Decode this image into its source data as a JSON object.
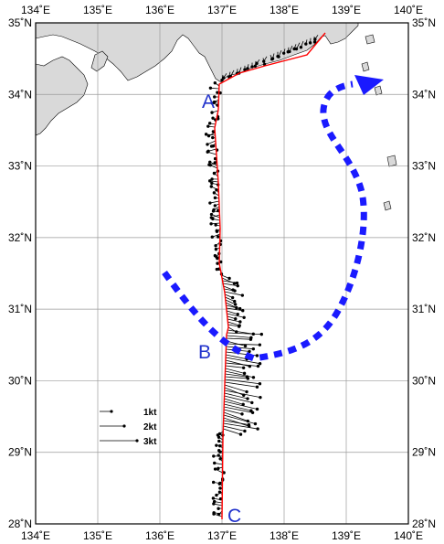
{
  "map": {
    "lon_range": [
      134,
      140
    ],
    "lat_range": [
      28,
      35
    ],
    "lon_labels": [
      "134˚E",
      "135˚E",
      "136˚E",
      "137˚E",
      "138˚E",
      "139˚E",
      "140˚E"
    ],
    "lat_labels": [
      "35˚N",
      "34˚N",
      "33˚N",
      "32˚N",
      "31˚N",
      "30˚N",
      "29˚N",
      "28˚N"
    ],
    "land_color": "#d9d9d9",
    "track_color": "#ff0000",
    "arrow_color": "#1a1aff"
  },
  "legend": {
    "items": [
      {
        "label": "1kt"
      },
      {
        "label": "2kt"
      },
      {
        "label": "3kt"
      }
    ]
  },
  "points": {
    "A": "A",
    "B": "B",
    "C": "C"
  }
}
